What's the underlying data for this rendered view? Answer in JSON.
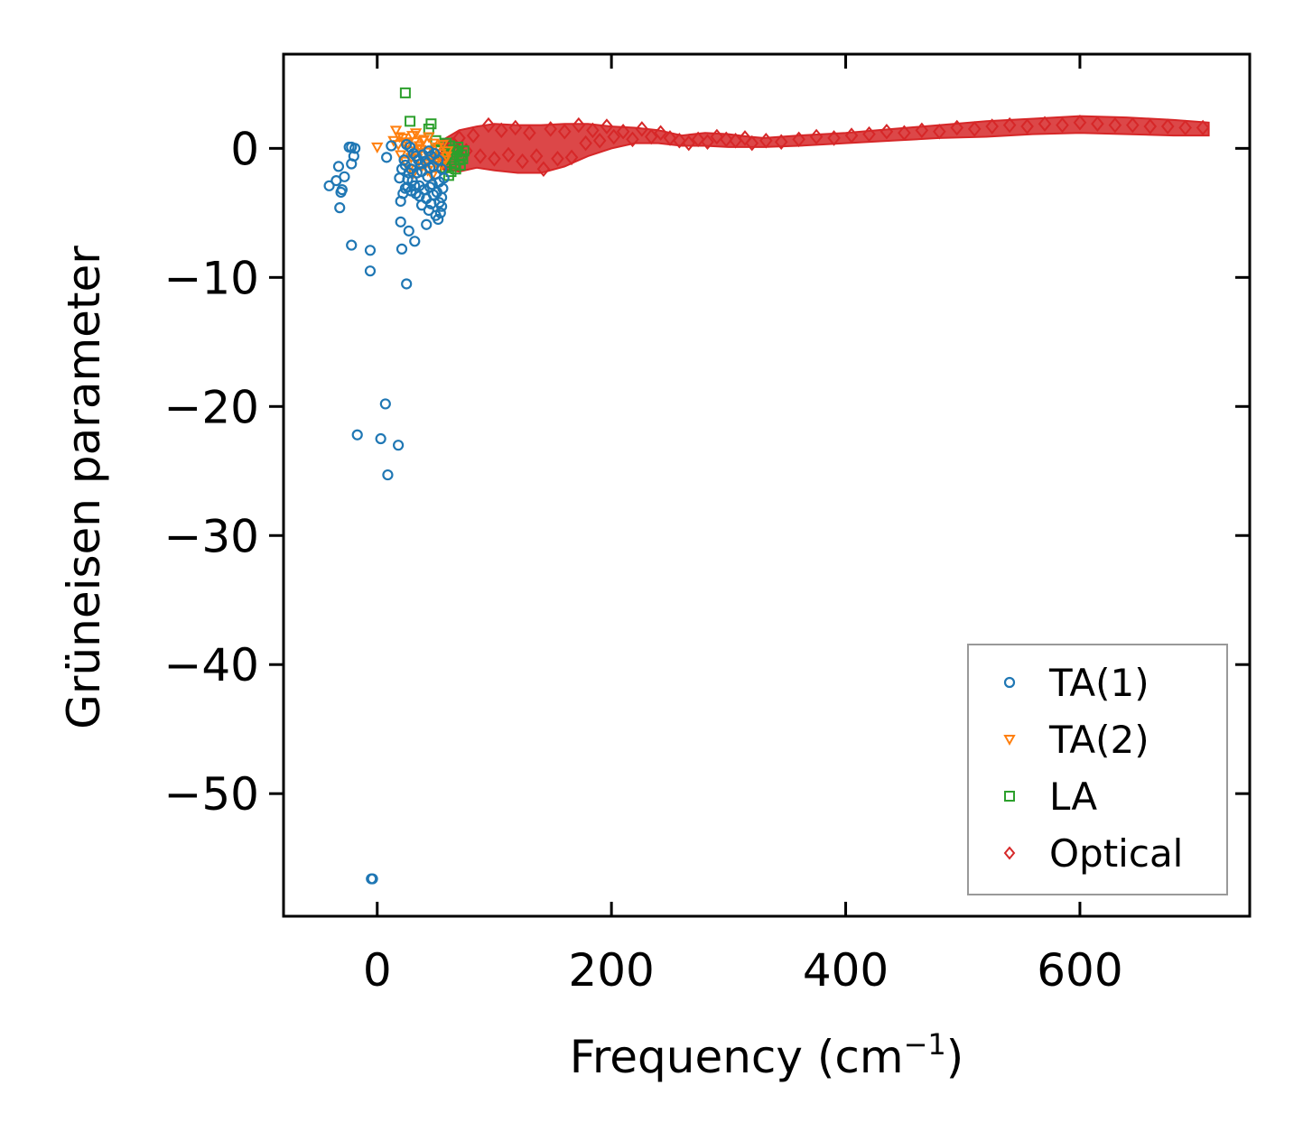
{
  "chart_data": {
    "type": "scatter",
    "xlabel": "Frequency (cm",
    "xlabel_sup": "−1",
    "xlabel_suffix": ")",
    "ylabel": "Grüneisen parameter",
    "xlim": [
      -80,
      745
    ],
    "ylim": [
      -59.5,
      7.3
    ],
    "xticks": [
      0,
      200,
      400,
      600
    ],
    "xtick_labels": [
      "0",
      "200",
      "400",
      "600"
    ],
    "yticks": [
      0,
      -10,
      -20,
      -30,
      -40,
      -50
    ],
    "ytick_labels": [
      "0",
      "−10",
      "−20",
      "−30",
      "−40",
      "−50"
    ],
    "legend_position": "lower-right",
    "colors": {
      "ta1": "#1f77b4",
      "ta2": "#ff7f0e",
      "la": "#2ca02c",
      "optical": "#d62728"
    },
    "series": [
      {
        "name": "TA(1)",
        "marker": "circle",
        "color": "#1f77b4",
        "points": [
          [
            -5,
            -56.6
          ],
          [
            -4,
            -56.6
          ],
          [
            -17,
            -22.2
          ],
          [
            3,
            -22.5
          ],
          [
            7,
            -19.8
          ],
          [
            9,
            -25.3
          ],
          [
            18,
            -23.0
          ],
          [
            -6,
            -9.5
          ],
          [
            -6,
            -7.9
          ],
          [
            -22,
            -7.5
          ],
          [
            25,
            -10.5
          ],
          [
            21,
            -7.8
          ],
          [
            27,
            -6.4
          ],
          [
            32,
            -7.2
          ],
          [
            -32,
            -4.6
          ],
          [
            -41,
            -2.9
          ],
          [
            -35,
            -2.5
          ],
          [
            -33,
            -1.4
          ],
          [
            -30,
            -3.2
          ],
          [
            -31,
            -3.4
          ],
          [
            -28,
            -2.2
          ],
          [
            -22,
            -1.2
          ],
          [
            -20,
            -0.6
          ],
          [
            -22,
            0.1
          ],
          [
            -19,
            0.0
          ],
          [
            -24,
            0.1
          ],
          [
            8,
            -0.7
          ],
          [
            12,
            0.2
          ],
          [
            20,
            -5.7
          ],
          [
            20,
            -4.1
          ],
          [
            24,
            -3.1
          ],
          [
            22,
            -3.5
          ],
          [
            26,
            -2.4
          ],
          [
            19,
            -2.3
          ],
          [
            29,
            -1.6
          ],
          [
            33,
            -3.5
          ],
          [
            36,
            -2.9
          ],
          [
            37,
            -1.2
          ],
          [
            39,
            -0.5
          ],
          [
            42,
            -5.9
          ],
          [
            44,
            -4.8
          ],
          [
            46,
            -4.3
          ],
          [
            45,
            -3.0
          ],
          [
            48,
            -3.6
          ],
          [
            50,
            -5.2
          ],
          [
            52,
            -5.5
          ],
          [
            54,
            -5.0
          ],
          [
            55,
            -4.5
          ],
          [
            55,
            -3.8
          ],
          [
            53,
            -2.6
          ],
          [
            50,
            -2.0
          ],
          [
            48,
            -1.4
          ],
          [
            46,
            -0.6
          ],
          [
            44,
            -0.2
          ],
          [
            41,
            -1.0
          ],
          [
            38,
            -1.8
          ],
          [
            35,
            -0.9
          ],
          [
            31,
            -0.4
          ],
          [
            28,
            0.1
          ],
          [
            24,
            -1.3
          ],
          [
            26,
            -3.0
          ],
          [
            30,
            -2.5
          ],
          [
            34,
            -1.9
          ],
          [
            40,
            -3.2
          ],
          [
            43,
            -2.2
          ],
          [
            47,
            -2.8
          ],
          [
            51,
            -3.4
          ],
          [
            53,
            -4.2
          ],
          [
            56,
            -3.1
          ],
          [
            57,
            -2.3
          ],
          [
            55,
            -1.6
          ],
          [
            52,
            -0.9
          ],
          [
            49,
            -0.4
          ],
          [
            45,
            -1.5
          ],
          [
            42,
            -3.9
          ],
          [
            38,
            -4.4
          ],
          [
            36,
            -3.7
          ],
          [
            32,
            -2.9
          ],
          [
            29,
            -3.3
          ],
          [
            27,
            -1.9
          ],
          [
            23,
            -0.9
          ],
          [
            21,
            -1.6
          ],
          [
            25,
            0.3
          ],
          [
            33,
            -0.6
          ]
        ]
      },
      {
        "name": "TA(2)",
        "marker": "triangle-down",
        "color": "#ff7f0e",
        "points": [
          [
            0,
            0.1
          ],
          [
            16,
            1.4
          ],
          [
            14,
            0.6
          ],
          [
            18,
            0.3
          ],
          [
            20,
            -0.5
          ],
          [
            22,
            0.8
          ],
          [
            24,
            -1.0
          ],
          [
            26,
            0.4
          ],
          [
            28,
            -0.2
          ],
          [
            30,
            1.0
          ],
          [
            32,
            0.5
          ],
          [
            34,
            -0.8
          ],
          [
            36,
            0.2
          ],
          [
            38,
            -1.4
          ],
          [
            40,
            0.7
          ],
          [
            42,
            -0.3
          ],
          [
            44,
            0.9
          ],
          [
            46,
            -0.6
          ],
          [
            48,
            0.4
          ],
          [
            50,
            -1.1
          ],
          [
            52,
            0.1
          ],
          [
            54,
            -0.4
          ],
          [
            56,
            0.3
          ],
          [
            58,
            -0.9
          ],
          [
            60,
            -0.2
          ],
          [
            27,
            -1.6
          ],
          [
            31,
            -1.9
          ],
          [
            35,
            0.0
          ],
          [
            39,
            0.6
          ],
          [
            43,
            -1.7
          ],
          [
            47,
            -2.1
          ],
          [
            51,
            -0.8
          ],
          [
            55,
            -1.3
          ],
          [
            59,
            -0.6
          ],
          [
            19,
            0.9
          ],
          [
            23,
            0.5
          ],
          [
            29,
            -0.7
          ],
          [
            33,
            1.2
          ],
          [
            37,
            -0.1
          ],
          [
            41,
            -1.2
          ]
        ]
      },
      {
        "name": "LA",
        "marker": "square",
        "color": "#2ca02c",
        "points": [
          [
            24,
            4.3
          ],
          [
            28,
            2.1
          ],
          [
            44,
            1.5
          ],
          [
            46,
            1.9
          ],
          [
            50,
            0.6
          ],
          [
            54,
            -0.2
          ],
          [
            56,
            -0.9
          ],
          [
            58,
            -1.5
          ],
          [
            60,
            -0.4
          ],
          [
            62,
            0.2
          ],
          [
            64,
            -0.7
          ],
          [
            66,
            -1.2
          ],
          [
            68,
            -0.3
          ],
          [
            70,
            -0.9
          ],
          [
            72,
            -0.5
          ],
          [
            74,
            -0.2
          ],
          [
            63,
            -1.8
          ],
          [
            67,
            -1.6
          ],
          [
            71,
            -1.3
          ],
          [
            61,
            -2.1
          ],
          [
            65,
            -0.1
          ],
          [
            69,
            0.1
          ],
          [
            73,
            -0.8
          ],
          [
            59,
            0.4
          ]
        ]
      },
      {
        "name": "Optical",
        "marker": "diamond",
        "color": "#d62728",
        "points": [
          [
            58,
            -0.4
          ],
          [
            64,
            0.3
          ],
          [
            70,
            0.8
          ],
          [
            76,
            -0.2
          ],
          [
            82,
            1.0
          ],
          [
            88,
            -0.6
          ],
          [
            95,
            1.8
          ],
          [
            100,
            -0.8
          ],
          [
            106,
            1.4
          ],
          [
            112,
            -0.5
          ],
          [
            118,
            1.6
          ],
          [
            124,
            -1.0
          ],
          [
            130,
            1.2
          ],
          [
            136,
            -0.6
          ],
          [
            142,
            -1.6
          ],
          [
            148,
            1.5
          ],
          [
            154,
            -0.8
          ],
          [
            160,
            1.3
          ],
          [
            166,
            -0.7
          ],
          [
            172,
            1.8
          ],
          [
            178,
            0.4
          ],
          [
            184,
            1.4
          ],
          [
            190,
            0.6
          ],
          [
            196,
            1.7
          ],
          [
            202,
            0.9
          ],
          [
            210,
            1.3
          ],
          [
            218,
            0.7
          ],
          [
            226,
            1.5
          ],
          [
            234,
            0.9
          ],
          [
            242,
            1.2
          ],
          [
            250,
            0.8
          ],
          [
            258,
            0.6
          ],
          [
            266,
            0.4
          ],
          [
            274,
            0.7
          ],
          [
            282,
            0.5
          ],
          [
            290,
            0.9
          ],
          [
            298,
            0.7
          ],
          [
            306,
            0.6
          ],
          [
            314,
            0.8
          ],
          [
            320,
            0.4
          ],
          [
            332,
            0.6
          ],
          [
            345,
            0.5
          ],
          [
            360,
            0.7
          ],
          [
            375,
            0.9
          ],
          [
            390,
            0.8
          ],
          [
            405,
            1.0
          ],
          [
            420,
            1.1
          ],
          [
            435,
            1.3
          ],
          [
            450,
            1.2
          ],
          [
            465,
            1.4
          ],
          [
            480,
            1.3
          ],
          [
            495,
            1.6
          ],
          [
            510,
            1.5
          ],
          [
            525,
            1.7
          ],
          [
            540,
            1.8
          ],
          [
            555,
            1.7
          ],
          [
            570,
            1.9
          ],
          [
            585,
            1.8
          ],
          [
            600,
            2.0
          ],
          [
            615,
            1.9
          ],
          [
            630,
            1.8
          ],
          [
            645,
            1.8
          ],
          [
            660,
            1.7
          ],
          [
            675,
            1.7
          ],
          [
            690,
            1.6
          ],
          [
            705,
            1.6
          ]
        ]
      }
    ],
    "optical_band": [
      [
        55,
        -1.6,
        0.6
      ],
      [
        70,
        -1.8,
        1.4
      ],
      [
        85,
        -1.5,
        1.7
      ],
      [
        100,
        -1.7,
        1.9
      ],
      [
        120,
        -1.9,
        1.8
      ],
      [
        140,
        -1.9,
        1.8
      ],
      [
        160,
        -1.4,
        1.9
      ],
      [
        180,
        -0.6,
        1.9
      ],
      [
        200,
        0.0,
        1.7
      ],
      [
        220,
        0.4,
        1.6
      ],
      [
        240,
        0.4,
        1.4
      ],
      [
        260,
        0.2,
        1.0
      ],
      [
        280,
        0.2,
        1.2
      ],
      [
        300,
        0.1,
        1.1
      ],
      [
        318,
        0.1,
        0.9
      ],
      [
        330,
        0.1,
        0.8
      ],
      [
        360,
        0.2,
        1.0
      ],
      [
        400,
        0.4,
        1.2
      ],
      [
        440,
        0.6,
        1.5
      ],
      [
        480,
        0.8,
        1.8
      ],
      [
        520,
        0.9,
        2.1
      ],
      [
        560,
        1.1,
        2.3
      ],
      [
        600,
        1.2,
        2.5
      ],
      [
        640,
        1.1,
        2.4
      ],
      [
        680,
        1.0,
        2.2
      ],
      [
        710,
        1.0,
        2.0
      ]
    ]
  }
}
